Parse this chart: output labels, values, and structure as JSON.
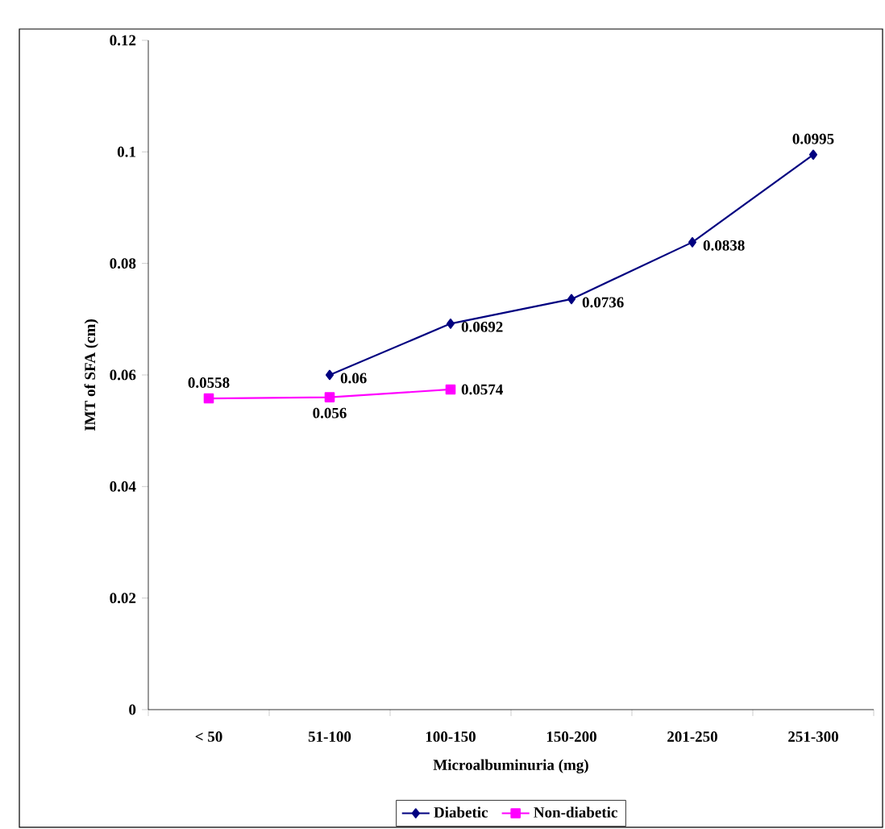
{
  "chart_data": {
    "type": "line",
    "xlabel": "Microalbuminuria (mg)",
    "ylabel": "IMT of SFA (cm)",
    "categories": [
      "< 50",
      "51-100",
      "100-150",
      "150-200",
      "201-250",
      "251-300"
    ],
    "series": [
      {
        "name": "Diabetic",
        "color": "#000080",
        "marker": "diamond",
        "values": [
          null,
          0.06,
          0.0692,
          0.0736,
          0.0838,
          0.0995
        ]
      },
      {
        "name": "Non-diabetic",
        "color": "#ff00ff",
        "marker": "square",
        "values": [
          0.0558,
          0.056,
          0.0574,
          null,
          null,
          null
        ]
      }
    ],
    "ylim": [
      0,
      0.12
    ],
    "yticks": [
      0,
      0.02,
      0.04,
      0.06,
      0.08,
      0.1,
      0.12
    ],
    "grid": false,
    "legend": "bottom",
    "data_labels": true
  }
}
